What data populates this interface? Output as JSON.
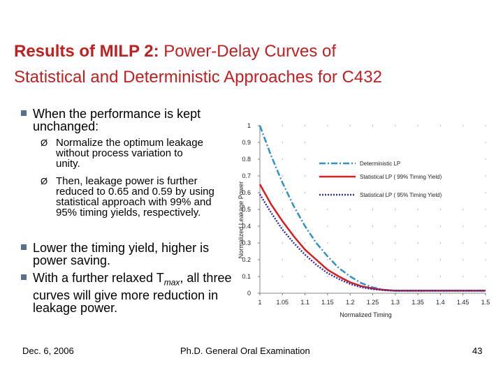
{
  "slide": {
    "title_bold": "Results of MILP 2:",
    "title_rest": "Power-Delay Curves of",
    "title_line2": "Statistical and Deterministic Approaches for C432",
    "bullets": [
      {
        "text": "When the performance is kept unchanged:"
      },
      {
        "text": "Normalize the optimum leakage without process variation to unity."
      },
      {
        "text": "Then, leakage power is further reduced to 0.65 and 0.59 by using statistical approach with 99% and 95% timing yields, respectively."
      },
      {
        "text": "Lower the timing yield, higher is power saving."
      },
      {
        "text_prefix": "With a further relaxed T",
        "subscript": "max",
        "text_suffix": ", all three curves will give more reduction in leakage power."
      }
    ],
    "sub_marker": "Ø",
    "footer_date": "Dec. 6, 2006",
    "footer_center": "Ph.D. General Oral Examination",
    "page_number": "43"
  },
  "chart_data": {
    "type": "line",
    "xlabel": "Normalized Timing",
    "ylabel": "Normalized Leakage Power",
    "x_ticks": [
      "1",
      "1.05",
      "1.1",
      "1.15",
      "1.2",
      "1.25",
      "1.3",
      "1.35",
      "1.4",
      "1.45",
      "1.5"
    ],
    "y_ticks": [
      "0",
      "0.1",
      "0.2",
      "0.3",
      "0.4",
      "0.5",
      "0.6",
      "0.7",
      "0.8",
      "0.9",
      "1"
    ],
    "xlim": [
      1,
      1.5
    ],
    "ylim": [
      0,
      1
    ],
    "legend_position": "top-right",
    "series": [
      {
        "name": "Deterministic LP",
        "color": "#2f93c7",
        "style": "dashdot",
        "x": [
          1,
          1.025,
          1.05,
          1.075,
          1.1,
          1.125,
          1.15,
          1.175,
          1.2,
          1.225,
          1.25,
          1.275,
          1.3,
          1.5
        ],
        "y": [
          1.0,
          0.82,
          0.66,
          0.52,
          0.4,
          0.3,
          0.22,
          0.15,
          0.1,
          0.06,
          0.035,
          0.02,
          0.015,
          0.015
        ]
      },
      {
        "name": "Statistical LP ( 99% Timing Yield)",
        "color": "#e01b1b",
        "style": "solid",
        "x": [
          1,
          1.025,
          1.05,
          1.075,
          1.1,
          1.125,
          1.15,
          1.175,
          1.2,
          1.225,
          1.25,
          1.275,
          1.3,
          1.5
        ],
        "y": [
          0.65,
          0.53,
          0.43,
          0.34,
          0.26,
          0.2,
          0.14,
          0.1,
          0.065,
          0.042,
          0.028,
          0.02,
          0.015,
          0.015
        ]
      },
      {
        "name": "Statistical LP ( 95% Timing Yield)",
        "color": "#2b2bb8",
        "style": "dotted",
        "x": [
          1,
          1.025,
          1.05,
          1.075,
          1.1,
          1.125,
          1.15,
          1.175,
          1.2,
          1.225,
          1.25,
          1.275,
          1.3,
          1.5
        ],
        "y": [
          0.59,
          0.48,
          0.38,
          0.3,
          0.23,
          0.17,
          0.12,
          0.085,
          0.055,
          0.035,
          0.024,
          0.018,
          0.015,
          0.015
        ]
      }
    ]
  }
}
